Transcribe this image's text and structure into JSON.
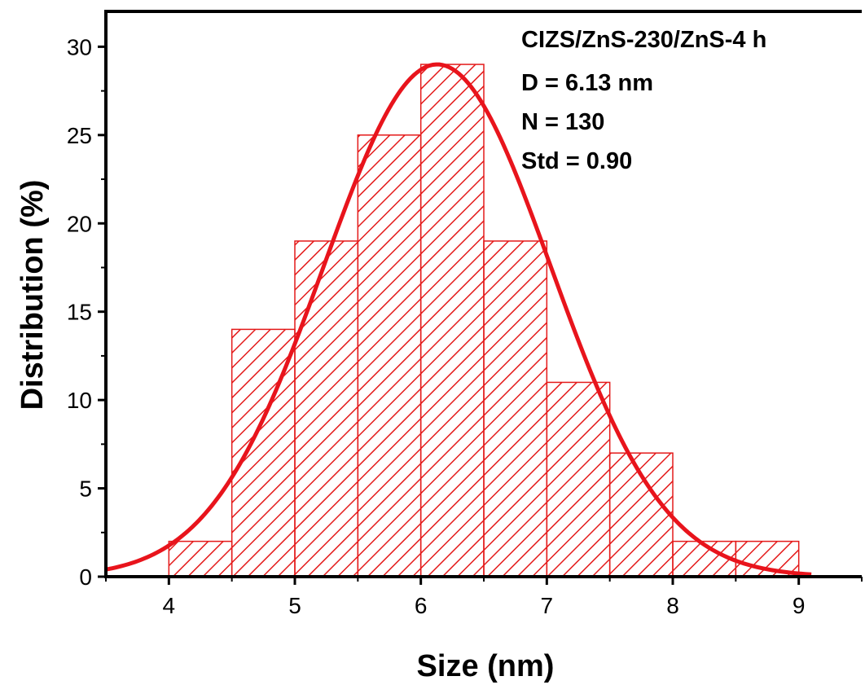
{
  "chart_data": {
    "type": "bar",
    "subtype": "histogram with gaussian fit",
    "xlabel": "Size (nm)",
    "ylabel": "Distribution (%)",
    "xlim": [
      3.5,
      9.5
    ],
    "ylim": [
      0,
      32
    ],
    "xticks": [
      "4",
      "5",
      "6",
      "7",
      "8",
      "9"
    ],
    "yticks": [
      "0",
      "5",
      "10",
      "15",
      "20",
      "25",
      "30"
    ],
    "bins": [
      {
        "x0": 4.0,
        "x1": 4.5,
        "value": 2
      },
      {
        "x0": 4.5,
        "x1": 5.0,
        "value": 14
      },
      {
        "x0": 5.0,
        "x1": 5.5,
        "value": 19
      },
      {
        "x0": 5.5,
        "x1": 6.0,
        "value": 25
      },
      {
        "x0": 6.0,
        "x1": 6.5,
        "value": 29
      },
      {
        "x0": 6.5,
        "x1": 7.0,
        "value": 19
      },
      {
        "x0": 7.0,
        "x1": 7.5,
        "value": 11
      },
      {
        "x0": 7.5,
        "x1": 8.0,
        "value": 7
      },
      {
        "x0": 8.0,
        "x1": 8.5,
        "value": 2
      },
      {
        "x0": 8.5,
        "x1": 9.0,
        "value": 2
      }
    ],
    "fit": {
      "type": "gaussian",
      "center": 6.13,
      "amplitude": 29,
      "sigma": 0.9,
      "x_range": [
        3.5,
        9.1
      ]
    },
    "annotations": [
      "CIZS/ZnS-230/ZnS-4 h",
      "D = 6.13 nm",
      "N = 130",
      "Std = 0.90"
    ],
    "colors": {
      "bars": "#e41a1a",
      "fit": "#e8141c",
      "axes": "#000000"
    },
    "grid": false
  }
}
